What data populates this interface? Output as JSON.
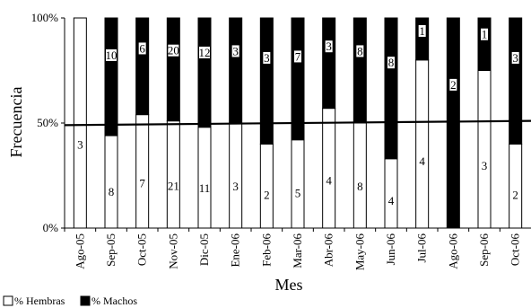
{
  "chart_data": {
    "type": "bar",
    "stacked": true,
    "percent": true,
    "xlabel": "Mes",
    "ylabel": "Frecuencia",
    "ylim": [
      0,
      100
    ],
    "y_ticks": [
      "0%",
      "50%",
      "100%"
    ],
    "categories": [
      "Ago-05",
      "Sep-05",
      "Oct-05",
      "Nov-05",
      "Dic-05",
      "Ene-06",
      "Feb-06",
      "Mar-06",
      "Abr-06",
      "May-06",
      "Jun-06",
      "Jul-06",
      "Ago-06",
      "Sep-06",
      "Oct-06"
    ],
    "series": [
      {
        "name": "% Hembras",
        "color": "#ffffff",
        "values": [
          100,
          44,
          54,
          51,
          48,
          50,
          40,
          42,
          57,
          50,
          33,
          80,
          0,
          75,
          40
        ],
        "labels": [
          "3",
          "8",
          "7",
          "21",
          "11",
          "3",
          "2",
          "5",
          "4",
          "8",
          "4",
          "4",
          "",
          "3",
          "2"
        ]
      },
      {
        "name": "% Machos",
        "color": "#000000",
        "values": [
          0,
          56,
          46,
          49,
          52,
          50,
          60,
          58,
          43,
          50,
          67,
          20,
          100,
          25,
          60
        ],
        "labels": [
          "",
          "10",
          "6",
          "20",
          "12",
          "3",
          "3",
          "7",
          "3",
          "8",
          "8",
          "1",
          "2",
          "1",
          "3"
        ]
      }
    ],
    "reference_line": {
      "y_start": 49,
      "y_end": 51
    },
    "legend_position": "bottom-left",
    "grid": false
  }
}
